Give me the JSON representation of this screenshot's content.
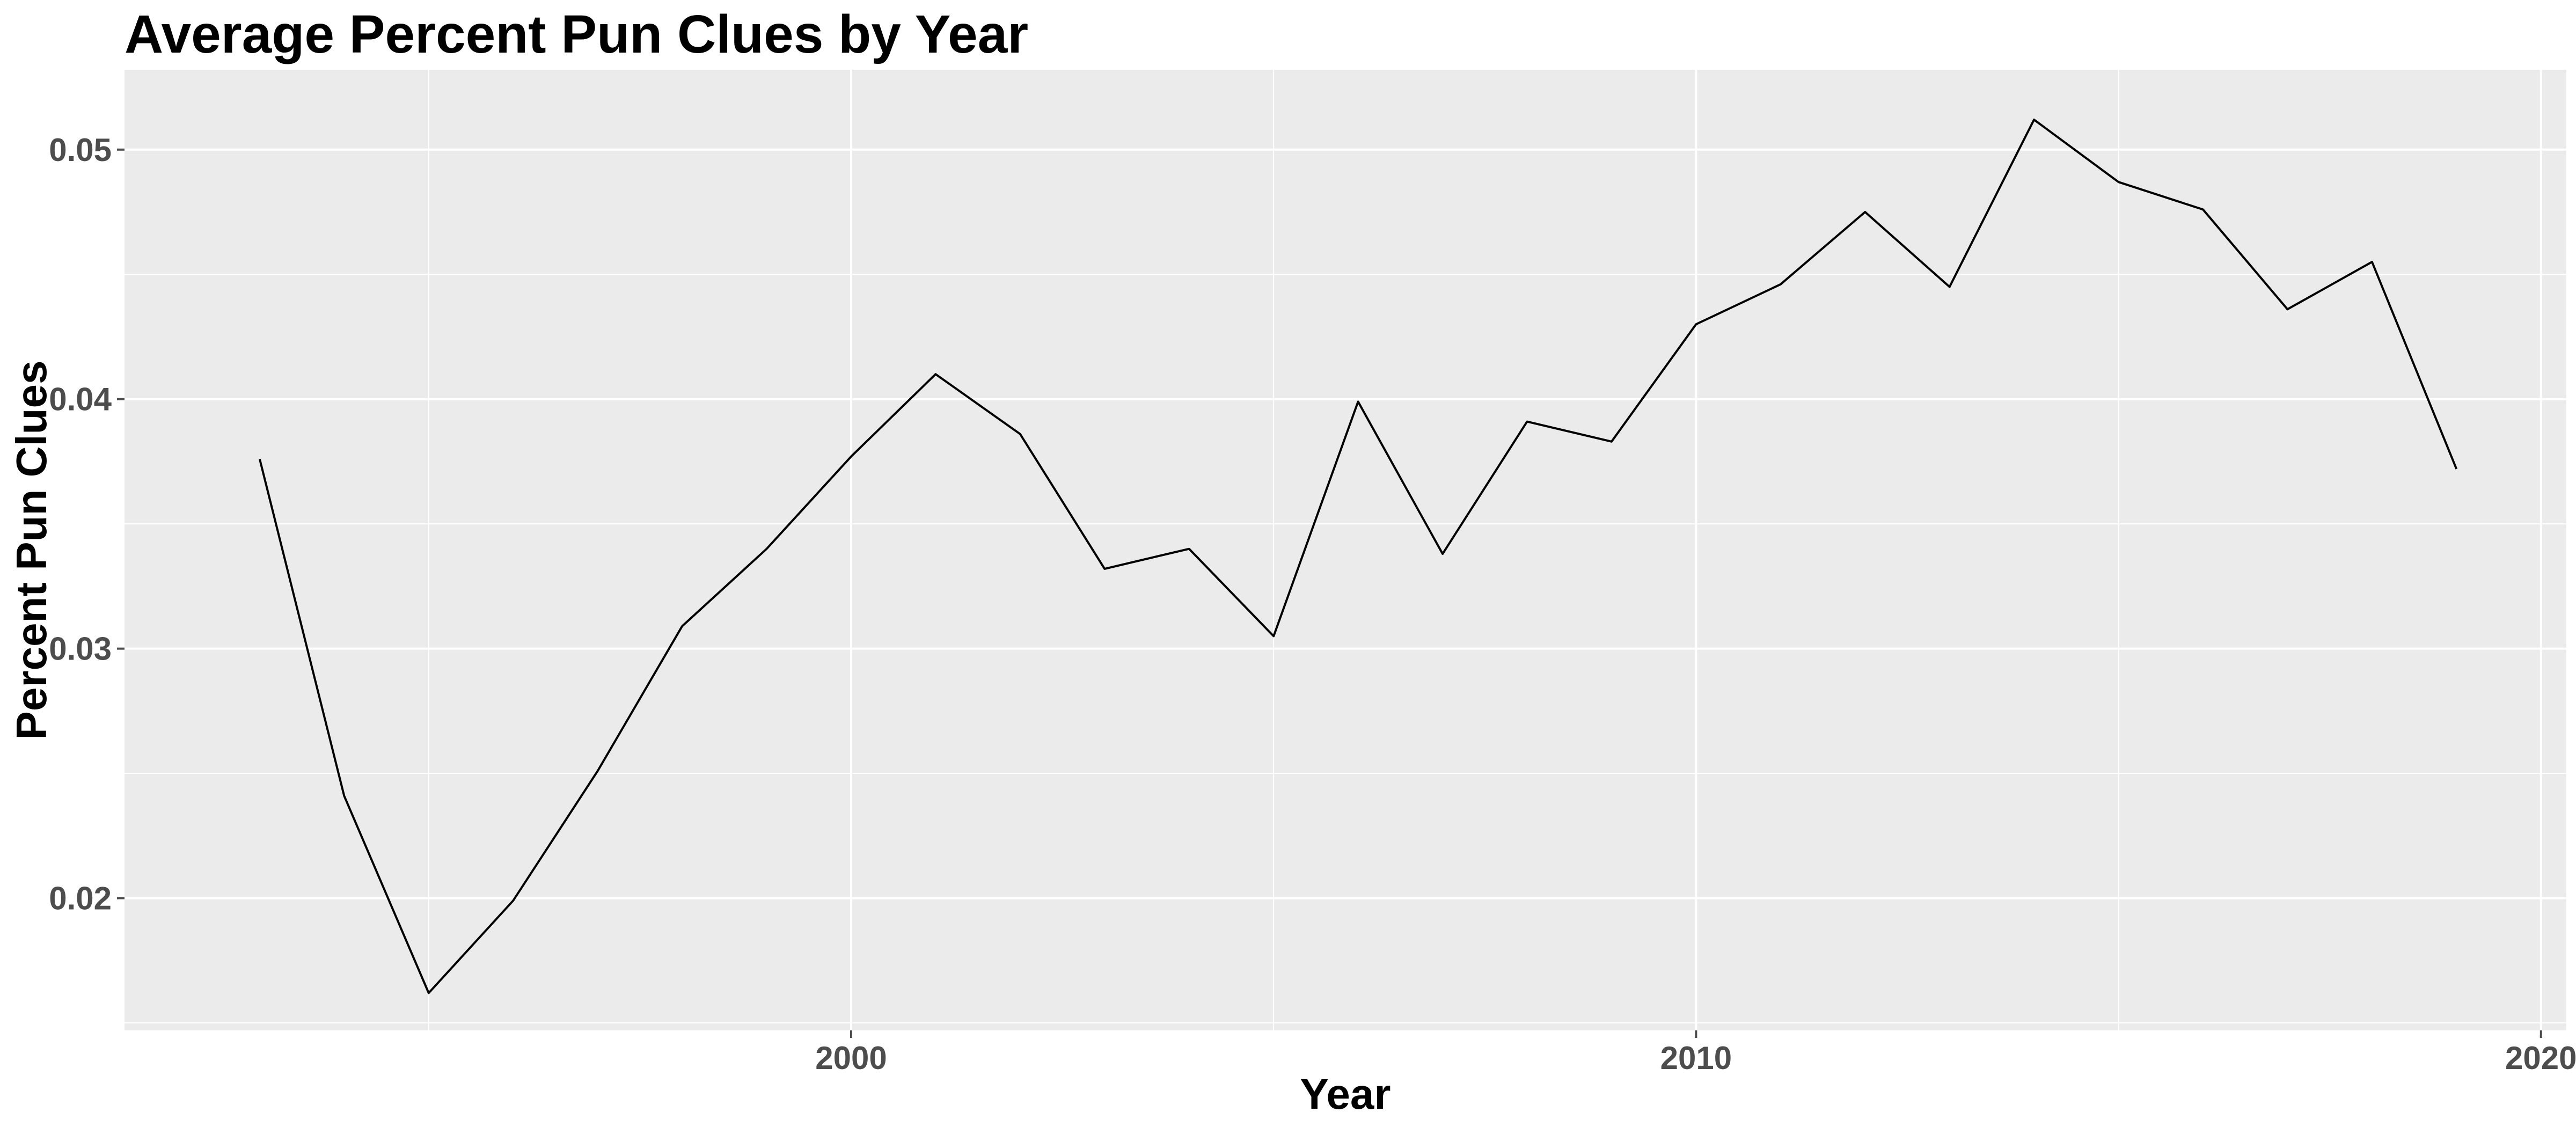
{
  "chart_data": {
    "type": "line",
    "title": "Average Percent Pun Clues by Year",
    "xlabel": "Year",
    "ylabel": "Percent Pun Clues",
    "xlim": [
      1991.4,
      2020.3
    ],
    "ylim": [
      0.0147,
      0.0532
    ],
    "x_ticks": [
      2000,
      2010,
      2020
    ],
    "x_tick_labels": [
      "2000",
      "2010",
      "2020"
    ],
    "y_ticks": [
      0.02,
      0.03,
      0.04,
      0.05
    ],
    "y_tick_labels": [
      "0.02",
      "0.03",
      "0.04",
      "0.05"
    ],
    "x_minor_ticks": [
      1995,
      2005,
      2015
    ],
    "y_minor_ticks": [
      0.015,
      0.025,
      0.035,
      0.045
    ],
    "grid": true,
    "background": "#ebebeb",
    "line_color": "#000000",
    "series": [
      {
        "x": [
          1993,
          1994,
          1995,
          1996,
          1997,
          1998,
          1999,
          2000,
          2001,
          2002,
          2003,
          2004,
          2005,
          2006,
          2007,
          2008,
          2009,
          2010,
          2011,
          2012,
          2013,
          2014,
          2015,
          2016,
          2017,
          2018,
          2019
        ],
        "values": [
          0.0376,
          0.0241,
          0.0162,
          0.0199,
          0.0251,
          0.0309,
          0.034,
          0.0377,
          0.041,
          0.0386,
          0.0332,
          0.034,
          0.0305,
          0.0399,
          0.0338,
          0.0391,
          0.0383,
          0.043,
          0.0446,
          0.0475,
          0.0445,
          0.0512,
          0.0487,
          0.0476,
          0.0436,
          0.0455,
          0.0372
        ]
      }
    ]
  }
}
